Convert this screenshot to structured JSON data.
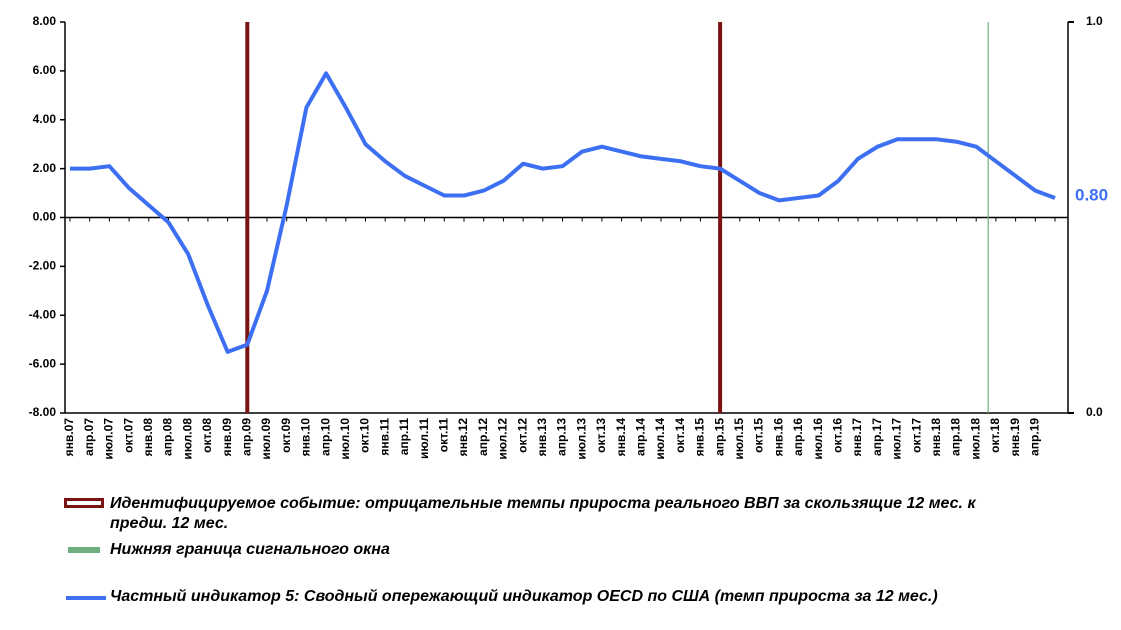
{
  "chart_data": {
    "type": "line",
    "categories": [
      "янв.07",
      "апр.07",
      "июл.07",
      "окт.07",
      "янв.08",
      "апр.08",
      "июл.08",
      "окт.08",
      "янв.09",
      "апр.09",
      "июл.09",
      "окт.09",
      "янв.10",
      "апр.10",
      "июл.10",
      "окт.10",
      "янв.11",
      "апр.11",
      "июл.11",
      "окт.11",
      "янв.12",
      "апр.12",
      "июл.12",
      "окт.12",
      "янв.13",
      "апр.13",
      "июл.13",
      "окт.13",
      "янв.14",
      "апр.14",
      "июл.14",
      "окт.14",
      "янв.15",
      "апр.15",
      "июл.15",
      "окт.15",
      "янв.16",
      "апр.16",
      "июл.16",
      "окт.16",
      "янв.17",
      "апр.17",
      "июл.17",
      "окт.17",
      "янв.18",
      "апр.18",
      "июл.18",
      "окт.18",
      "янв.19",
      "апр.19",
      null
    ],
    "series": [
      {
        "name": "Частный индикатор 5: Сводный опережающий индикатор OECD по США (темп прироста за 12 мес.)",
        "color": "#3d6ff2",
        "values": [
          2.0,
          2.0,
          2.1,
          1.2,
          0.5,
          -0.2,
          -1.5,
          -3.6,
          -5.5,
          -5.2,
          -3.0,
          0.5,
          4.5,
          5.9,
          4.5,
          3.0,
          2.3,
          1.7,
          1.3,
          0.9,
          0.9,
          1.1,
          1.5,
          2.2,
          2.0,
          2.1,
          2.7,
          2.9,
          2.7,
          2.5,
          2.4,
          2.3,
          2.1,
          2.0,
          1.5,
          1.0,
          0.7,
          0.8,
          0.9,
          1.5,
          2.4,
          2.9,
          3.2,
          3.2,
          3.2,
          3.1,
          2.9,
          2.3,
          1.7,
          1.1,
          0.8
        ],
        "value_labels": [
          null,
          null,
          null,
          null,
          null,
          null,
          null,
          null,
          null,
          null,
          null,
          null,
          null,
          null,
          null,
          null,
          null,
          null,
          null,
          null,
          null,
          null,
          null,
          null,
          null,
          null,
          null,
          null,
          null,
          null,
          null,
          null,
          null,
          null,
          null,
          null,
          null,
          null,
          null,
          null,
          null,
          null,
          null,
          null,
          null,
          null,
          null,
          null,
          null,
          null,
          "0.80"
        ]
      }
    ],
    "events": {
      "name": "Идентифицируемое событие: отрицательные темпы прироста реального ВВП за скользящие 12 мес. к предш. 12 мес.",
      "color": "#7b1212",
      "at": [
        "апр.09",
        "апр.15"
      ]
    },
    "signal_window": {
      "name": "Нижняя граница сигнального окна",
      "color": "#6fae80",
      "at": [
        "июл.18"
      ]
    },
    "ylim": [
      -8,
      8
    ],
    "yticks": [
      {
        "value": -8,
        "label": "-8.00"
      },
      {
        "value": -6,
        "label": "-6.00"
      },
      {
        "value": -4,
        "label": "-4.00"
      },
      {
        "value": -2,
        "label": "-2.00"
      },
      {
        "value": 0,
        "label": "0.00"
      },
      {
        "value": 2,
        "label": "2.00"
      },
      {
        "value": 4,
        "label": "4.00"
      },
      {
        "value": 6,
        "label": "6.00"
      },
      {
        "value": 8,
        "label": "8.00"
      }
    ],
    "y2lim": [
      0,
      1
    ],
    "y2ticks": [
      {
        "value": 0,
        "label": "0.0"
      },
      {
        "value": 1,
        "label": "1.0"
      }
    ]
  }
}
